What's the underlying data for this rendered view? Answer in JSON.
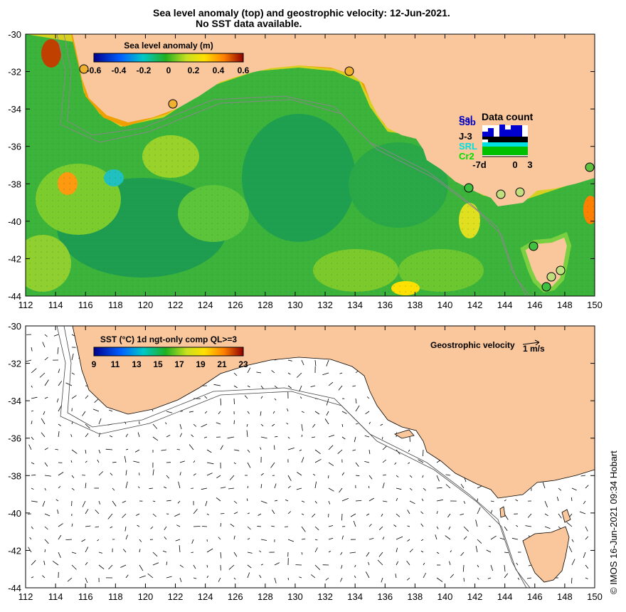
{
  "title_line1": "Sea level anomaly (top) and geostrophic velocity: 12-Jun-2021.",
  "title_line2": "No SST data available.",
  "credit": "©  IMOS 16-Jun-2021 09:34 Hobart",
  "top_panel": {
    "colorbar_title": "Sea level anomaly (m)",
    "colorbar_ticks": [
      "-0.6",
      "-0.4",
      "-0.2",
      "0",
      "0.2",
      "0.4",
      "0.6"
    ],
    "colors": {
      "land": "#f9c79b",
      "ocean_mid": "#35b53a",
      "ocean_low": "#1a9e5e",
      "high": "#e07a10",
      "coast_band": "#e8c400"
    },
    "data_count": {
      "title": "Data count",
      "labels": [
        "Sal",
        "S3b",
        "J-3",
        "SRL",
        "Cr2"
      ],
      "label_colors": [
        "#0000c0",
        "#0000c0",
        "#000000",
        "#00e0e0",
        "#00e000"
      ],
      "axis_ticks": [
        "-7d",
        "0",
        "3"
      ]
    },
    "tide_gauges": [
      "circle",
      "circle",
      "circle",
      "circle",
      "circle",
      "circle",
      "circle",
      "circle",
      "circle",
      "circle",
      "circle"
    ]
  },
  "bottom_panel": {
    "colorbar_title": "SST (°C) 1d ngt-only comp QL>=3",
    "colorbar_ticks": [
      "9",
      "11",
      "13",
      "15",
      "17",
      "19",
      "21",
      "23"
    ],
    "velocity_label": "Geostrophic velocity",
    "velocity_scale_label": "1 m/s"
  },
  "axes": {
    "x_ticks": [
      "112",
      "114",
      "116",
      "118",
      "120",
      "122",
      "124",
      "126",
      "128",
      "130",
      "132",
      "134",
      "136",
      "138",
      "140",
      "142",
      "144",
      "146",
      "148",
      "150"
    ],
    "y_ticks": [
      "-30",
      "-32",
      "-34",
      "-36",
      "-38",
      "-40",
      "-42",
      "-44"
    ],
    "lon_range": [
      112,
      150
    ],
    "lat_range": [
      -44,
      -30
    ]
  }
}
